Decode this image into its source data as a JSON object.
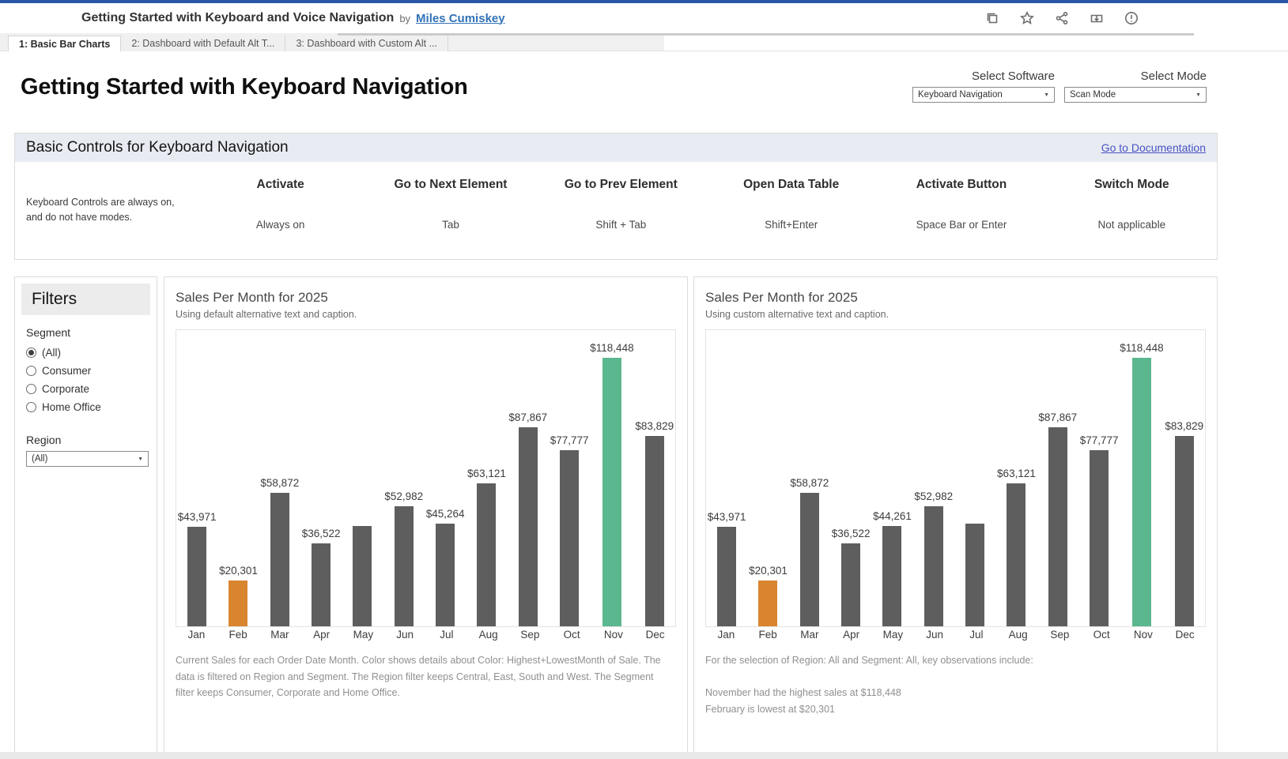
{
  "topbar": {
    "title": "Getting Started with Keyboard and Voice Navigation",
    "by": "by",
    "author": "Miles Cumiskey",
    "icons": [
      "copy-icon",
      "star-icon",
      "share-icon",
      "download-icon",
      "info-icon"
    ]
  },
  "tabs": [
    {
      "label": "1: Basic Bar Charts",
      "active": true
    },
    {
      "label": "2: Dashboard with Default Alt T...",
      "active": false
    },
    {
      "label": "3: Dashboard with Custom Alt ...",
      "active": false
    }
  ],
  "page": {
    "title": "Getting Started with Keyboard Navigation"
  },
  "params": [
    {
      "label": "Select Software",
      "value": "Keyboard Navigation"
    },
    {
      "label": "Select Mode",
      "value": "Scan Mode"
    }
  ],
  "controls_section": {
    "title": "Basic Controls for Keyboard Navigation",
    "doc_link": "Go to Documentation",
    "note_line1": "Keyboard Controls are always on,",
    "note_line2": "and do not have modes.",
    "columns": [
      {
        "header": "Activate",
        "value": "Always on"
      },
      {
        "header": "Go to Next Element",
        "value": "Tab"
      },
      {
        "header": "Go to Prev Element",
        "value": "Shift + Tab"
      },
      {
        "header": "Open Data Table",
        "value": "Shift+Enter"
      },
      {
        "header": "Activate Button",
        "value": "Space Bar or Enter"
      },
      {
        "header": "Switch Mode",
        "value": "Not applicable"
      }
    ]
  },
  "filters": {
    "title": "Filters",
    "segment_label": "Segment",
    "segment_options": [
      {
        "label": "(All)",
        "selected": true
      },
      {
        "label": "Consumer",
        "selected": false
      },
      {
        "label": "Corporate",
        "selected": false
      },
      {
        "label": "Home Office",
        "selected": false
      }
    ],
    "region_label": "Region",
    "region_value": "(All)"
  },
  "colors": {
    "bar_default": "#5e5e5e",
    "bar_low": "#d9852f",
    "bar_high": "#5bb78e",
    "top_strip": "#2957a6",
    "author_link": "#3272b8",
    "doc_link": "#4752c4"
  },
  "chart_data": [
    {
      "type": "bar",
      "title": "Sales Per Month for 2025",
      "subtitle": "Using default alternative text and caption.",
      "categories": [
        "Jan",
        "Feb",
        "Mar",
        "Apr",
        "May",
        "Jun",
        "Jul",
        "Aug",
        "Sep",
        "Oct",
        "Nov",
        "Dec"
      ],
      "values": [
        43971,
        20301,
        58872,
        36522,
        44261,
        52982,
        45264,
        63121,
        87867,
        77777,
        118448,
        83829
      ],
      "labels": [
        "$43,971",
        "$20,301",
        "$58,872",
        "$36,522",
        "",
        "$52,982",
        "$45,264",
        "$63,121",
        "$87,867",
        "$77,777",
        "$118,448",
        "$83,829"
      ],
      "highlight_high": "Nov",
      "highlight_low": "Feb",
      "ylim": [
        0,
        123000
      ],
      "xlabel": "",
      "ylabel": "",
      "grid": false,
      "legend": "none",
      "caption_lines": [
        "Current Sales for each Order Date Month. Color shows details about Color: Highest+LowestMonth of Sale. The data is filtered on Region and Segment. The Region filter keeps Central, East, South and West. The Segment filter keeps Consumer, Corporate and Home Office."
      ]
    },
    {
      "type": "bar",
      "title": "Sales Per Month for 2025",
      "subtitle": "Using custom alternative text and caption.",
      "categories": [
        "Jan",
        "Feb",
        "Mar",
        "Apr",
        "May",
        "Jun",
        "Jul",
        "Aug",
        "Sep",
        "Oct",
        "Nov",
        "Dec"
      ],
      "values": [
        43971,
        20301,
        58872,
        36522,
        44261,
        52982,
        45264,
        63121,
        87867,
        77777,
        118448,
        83829
      ],
      "labels": [
        "$43,971",
        "$20,301",
        "$58,872",
        "$36,522",
        "$44,261",
        "$52,982",
        "",
        "$63,121",
        "$87,867",
        "$77,777",
        "$118,448",
        "$83,829"
      ],
      "highlight_high": "Nov",
      "highlight_low": "Feb",
      "ylim": [
        0,
        123000
      ],
      "xlabel": "",
      "ylabel": "",
      "grid": false,
      "legend": "none",
      "caption_lines": [
        "For the selection of Region: All and Segment: All, key observations include:",
        "",
        "November had the highest sales at $118,448",
        "February is lowest at $20,301"
      ]
    }
  ]
}
